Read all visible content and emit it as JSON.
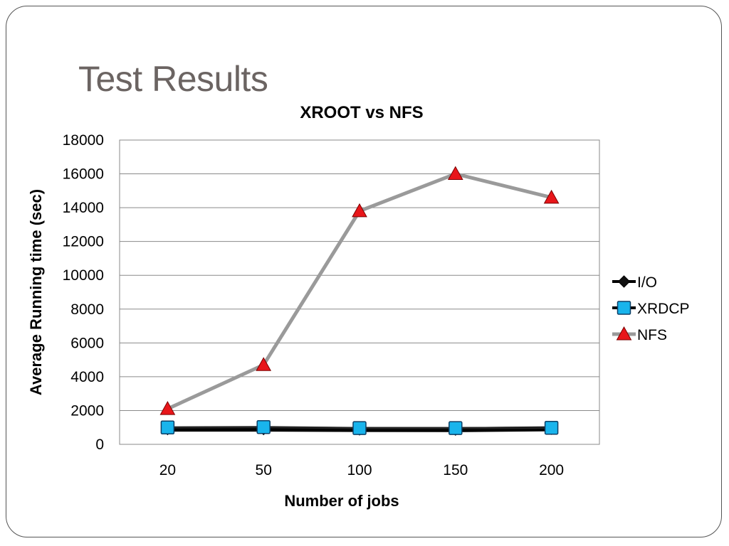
{
  "slide": {
    "title": "Test Results"
  },
  "chart_data": {
    "type": "line",
    "title": "XROOT vs NFS",
    "xlabel": "Number of jobs",
    "ylabel": "Average Running time (sec)",
    "categories": [
      "20",
      "50",
      "100",
      "150",
      "200"
    ],
    "ylim": [
      0,
      18000
    ],
    "yticks": [
      0,
      2000,
      4000,
      6000,
      8000,
      10000,
      12000,
      14000,
      16000,
      18000
    ],
    "grid": true,
    "legend_position": "right",
    "series": [
      {
        "name": "I/O",
        "values": [
          900,
          900,
          880,
          870,
          920
        ],
        "color": "#000000",
        "marker": "diamond"
      },
      {
        "name": "XRDCP",
        "values": [
          1000,
          1020,
          960,
          960,
          980
        ],
        "color": "#00a0d8",
        "marker": "square"
      },
      {
        "name": "NFS",
        "values": [
          2100,
          4700,
          13800,
          16000,
          14600
        ],
        "color": "#9a9a9a",
        "marker": "triangle"
      }
    ]
  }
}
